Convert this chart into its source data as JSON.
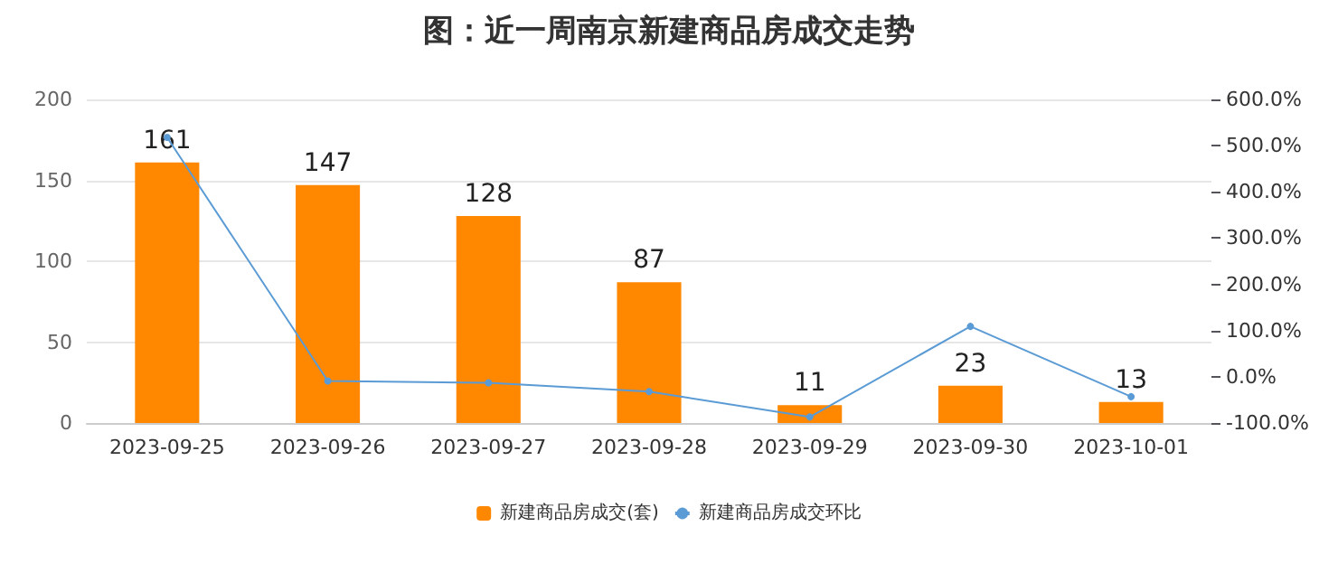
{
  "chart_data": {
    "type": "bar",
    "title": "图：近一周南京新建商品房成交走势",
    "categories": [
      "2023-09-25",
      "2023-09-26",
      "2023-09-27",
      "2023-09-28",
      "2023-09-29",
      "2023-09-30",
      "2023-10-01"
    ],
    "series": [
      {
        "name": "新建商品房成交(套)",
        "color": "#ff8800",
        "values": [
          161,
          147,
          128,
          87,
          11,
          23,
          13
        ],
        "value_labels": [
          "161",
          "147",
          "128",
          "87",
          "11",
          "23",
          "13"
        ]
      },
      {
        "name": "新建商品房成交环比",
        "type": "line",
        "axis": "y2",
        "color": "#5b9bd5",
        "marker": "circle",
        "values": [
          518,
          -9,
          -13,
          -32,
          -87,
          109,
          -43
        ]
      }
    ],
    "ylim": [
      0,
      200
    ],
    "yticks": [
      0,
      50,
      100,
      150,
      200
    ],
    "y2lim": [
      -100,
      600
    ],
    "y2ticks": [
      {
        "value": -100,
        "label": "-100.0%"
      },
      {
        "value": 0,
        "label": "0.0%"
      },
      {
        "value": 100,
        "label": "100.0%"
      },
      {
        "value": 200,
        "label": "200.0%"
      },
      {
        "value": 300,
        "label": "300.0%"
      },
      {
        "value": 400,
        "label": "400.0%"
      },
      {
        "value": 500,
        "label": "500.0%"
      },
      {
        "value": 600,
        "label": "600.0%"
      }
    ],
    "grid": "y",
    "legend": "bottom"
  }
}
